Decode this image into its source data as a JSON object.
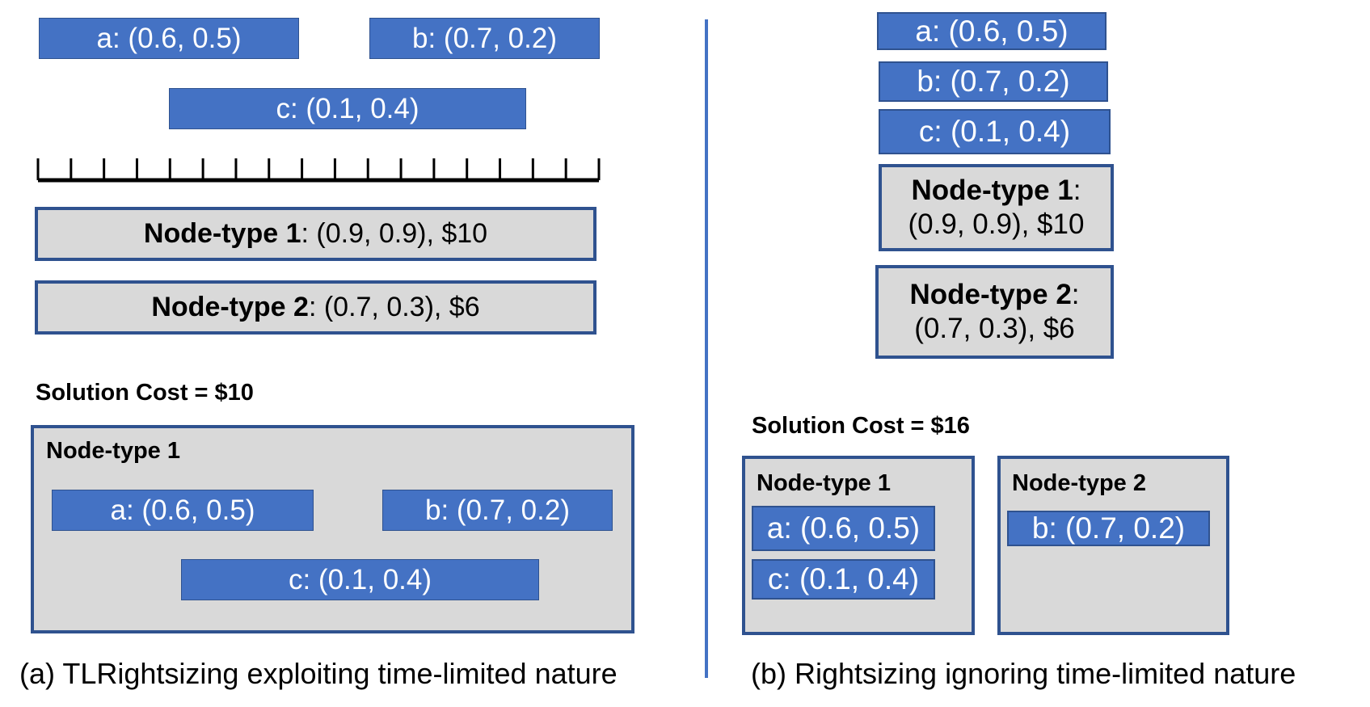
{
  "panel_a": {
    "jobs": [
      {
        "name": "a",
        "label": "a: (0.6, 0.5)"
      },
      {
        "name": "b",
        "label": "b: (0.7, 0.2)"
      },
      {
        "name": "c",
        "label": "c: (0.1, 0.4)"
      }
    ],
    "timeline_ticks": 18,
    "node_types": [
      {
        "name": "Node-type 1",
        "spec": ": (0.9, 0.9), $10"
      },
      {
        "name": "Node-type 2",
        "spec": ": (0.7, 0.3), $6"
      }
    ],
    "solution_cost": "Solution Cost = $10",
    "solution_nodes": [
      {
        "title": "Node-type 1",
        "jobs": [
          "a: (0.6, 0.5)",
          "b: (0.7, 0.2)",
          "c: (0.1, 0.4)"
        ]
      }
    ],
    "caption": "(a) TLRightsizing exploiting time-limited nature"
  },
  "panel_b": {
    "jobs": [
      {
        "name": "a",
        "label": "a: (0.6, 0.5)"
      },
      {
        "name": "b",
        "label": "b: (0.7, 0.2)"
      },
      {
        "name": "c",
        "label": "c: (0.1, 0.4)"
      }
    ],
    "node_types": [
      {
        "name": "Node-type 1",
        "spec_sep": ":",
        "spec": "(0.9, 0.9), $10"
      },
      {
        "name": "Node-type 2",
        "spec_sep": ":",
        "spec": "(0.7, 0.3), $6"
      }
    ],
    "solution_cost": "Solution Cost = $16",
    "solution_nodes": [
      {
        "title": "Node-type 1",
        "jobs": [
          "a: (0.6, 0.5)",
          "c: (0.1, 0.4)"
        ]
      },
      {
        "title": "Node-type 2",
        "jobs": [
          "b: (0.7, 0.2)"
        ]
      }
    ],
    "caption": "(b) Rightsizing ignoring time-limited nature"
  },
  "colors": {
    "job_fill": "#4472c4",
    "node_fill": "#d9d9d9",
    "node_border": "#2f528f"
  }
}
